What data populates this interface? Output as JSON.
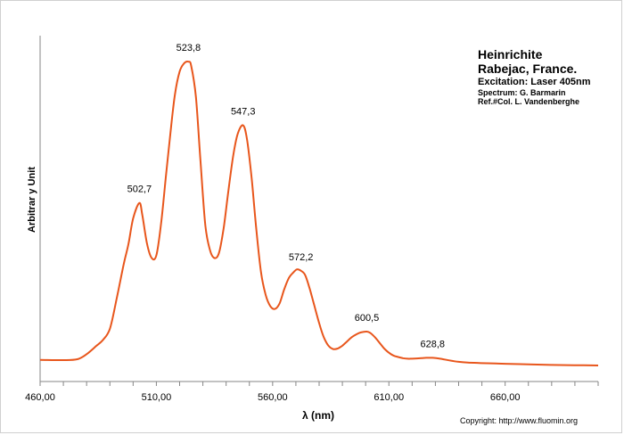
{
  "info": {
    "mineral": "Heinrichite",
    "locality": "Rabejac, France.",
    "excitation": "Excitation:  Laser 405nm",
    "spectrum": "Spectrum: G. Barmarin",
    "reference": "Ref.#Col. L. Vandenberghe"
  },
  "copyright": "Copyright: http://www.fluomin.org",
  "chart_data": {
    "type": "line",
    "xlabel": "λ (nm)",
    "ylabel": "Arbitrar y Unit",
    "xlim": [
      460,
      700
    ],
    "ylim": [
      0,
      1.05
    ],
    "xticks": [
      "460,00",
      "510,00",
      "560,00",
      "610,00",
      "660,00"
    ],
    "xtick_values": [
      460,
      510,
      560,
      610,
      660
    ],
    "grid": false,
    "line_color": "#e8561c",
    "series": [
      {
        "x": [
          460,
          470,
          476,
          480,
          484,
          487,
          490,
          493,
          496,
          498,
          500,
          502.7,
          504,
          506,
          508,
          510,
          512,
          514,
          516,
          518,
          520,
          522,
          523.8,
          525,
          527,
          529,
          531,
          533,
          535,
          537,
          539,
          541,
          543,
          545,
          547.3,
          549,
          551,
          553,
          555,
          557,
          559,
          561,
          563,
          565,
          567,
          569,
          570.5,
          572.2,
          574,
          576,
          578,
          580,
          582,
          584,
          586,
          588,
          590,
          592,
          594,
          596,
          598,
          600.5,
          602,
          604,
          606,
          608,
          610,
          612,
          614,
          616,
          618,
          620,
          622,
          624,
          626,
          628.8,
          632,
          636,
          640,
          644,
          648,
          652,
          656,
          660,
          670,
          680,
          690,
          700
        ],
        "y": [
          0.02,
          0.019,
          0.022,
          0.04,
          0.068,
          0.09,
          0.13,
          0.24,
          0.36,
          0.43,
          0.52,
          0.575,
          0.53,
          0.43,
          0.38,
          0.39,
          0.5,
          0.66,
          0.82,
          0.96,
          1.04,
          1.07,
          1.075,
          1.06,
          0.95,
          0.72,
          0.5,
          0.41,
          0.38,
          0.4,
          0.49,
          0.62,
          0.74,
          0.82,
          0.85,
          0.8,
          0.66,
          0.48,
          0.33,
          0.25,
          0.21,
          0.2,
          0.22,
          0.27,
          0.31,
          0.33,
          0.34,
          0.335,
          0.32,
          0.27,
          0.21,
          0.15,
          0.1,
          0.07,
          0.058,
          0.06,
          0.07,
          0.085,
          0.1,
          0.11,
          0.117,
          0.12,
          0.115,
          0.1,
          0.08,
          0.06,
          0.045,
          0.035,
          0.03,
          0.026,
          0.024,
          0.024,
          0.025,
          0.026,
          0.027,
          0.027,
          0.024,
          0.018,
          0.013,
          0.01,
          0.009,
          0.008,
          0.007,
          0.006,
          0.004,
          0.002,
          0.001,
          0
        ]
      }
    ],
    "peak_labels": [
      {
        "x": 502.7,
        "y": 0.575,
        "label": "502,7"
      },
      {
        "x": 523.8,
        "y": 1.075,
        "label": "523,8"
      },
      {
        "x": 547.3,
        "y": 0.85,
        "label": "547,3"
      },
      {
        "x": 572.2,
        "y": 0.335,
        "label": "572,2"
      },
      {
        "x": 600.5,
        "y": 0.12,
        "label": "600,5"
      },
      {
        "x": 628.8,
        "y": 0.027,
        "label": "628,8"
      }
    ]
  }
}
